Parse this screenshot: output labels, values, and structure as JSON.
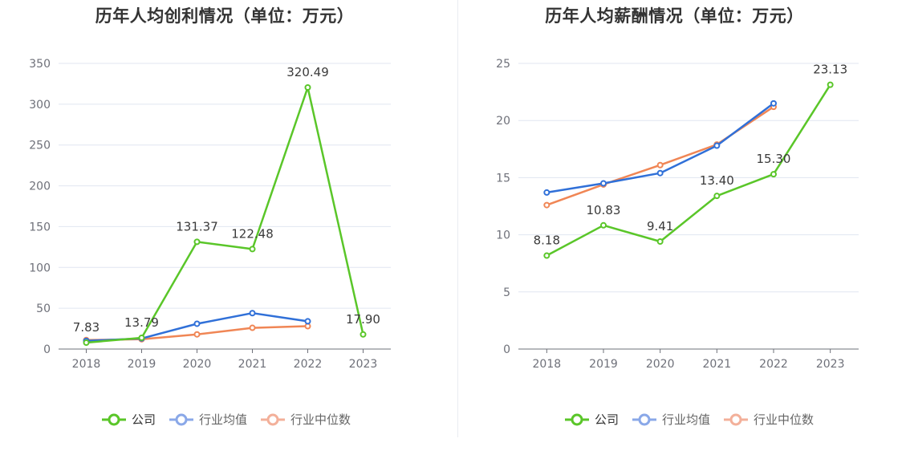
{
  "charts": [
    {
      "title": "历年人均创利情况（单位：万元）",
      "legend": [
        {
          "label": "公司",
          "color": "#5ac629"
        },
        {
          "label": "行业均值",
          "color": "#8aa8e8"
        },
        {
          "label": "行业中位数",
          "color": "#f3b09a"
        }
      ]
    },
    {
      "title": "历年人均薪酬情况（单位：万元）",
      "legend": [
        {
          "label": "公司",
          "color": "#5ac629"
        },
        {
          "label": "行业均值",
          "color": "#8aa8e8"
        },
        {
          "label": "行业中位数",
          "color": "#f3b09a"
        }
      ]
    }
  ],
  "chart_data": [
    {
      "type": "line",
      "title": "历年人均创利情况（单位：万元）",
      "categories": [
        "2018",
        "2019",
        "2020",
        "2021",
        "2022",
        "2023"
      ],
      "ylim": [
        0,
        350
      ],
      "yticks": [
        "0",
        "50",
        "100",
        "150",
        "200",
        "250",
        "300",
        "350"
      ],
      "grid": true,
      "legend_position": "bottom",
      "series": [
        {
          "name": "公司",
          "color": "#5ac629",
          "values": [
            7.83,
            13.79,
            131.37,
            122.48,
            320.49,
            17.9
          ],
          "labels": [
            "7.83",
            "13.79",
            "131.37",
            "122.48",
            "320.49",
            "17.90"
          ]
        },
        {
          "name": "行业均值",
          "color": "#3070d8",
          "values": [
            10,
            13,
            31,
            44,
            34,
            null
          ]
        },
        {
          "name": "行业中位数",
          "color": "#f08655",
          "values": [
            11,
            12,
            18,
            26,
            28,
            null
          ]
        }
      ]
    },
    {
      "type": "line",
      "title": "历年人均薪酬情况（单位：万元）",
      "categories": [
        "2018",
        "2019",
        "2020",
        "2021",
        "2022",
        "2023"
      ],
      "ylim": [
        0,
        25
      ],
      "yticks": [
        "0",
        "5",
        "10",
        "15",
        "20",
        "25"
      ],
      "grid": true,
      "legend_position": "bottom",
      "series": [
        {
          "name": "公司",
          "color": "#5ac629",
          "values": [
            8.18,
            10.83,
            9.41,
            13.4,
            15.3,
            23.13
          ],
          "labels": [
            "8.18",
            "10.83",
            "9.41",
            "13.40",
            "15.30",
            "23.13"
          ]
        },
        {
          "name": "行业均值",
          "color": "#3070d8",
          "values": [
            13.7,
            14.5,
            15.4,
            17.8,
            21.5,
            null
          ]
        },
        {
          "name": "行业中位数",
          "color": "#f08655",
          "values": [
            12.6,
            14.4,
            16.1,
            17.9,
            21.2,
            null
          ]
        }
      ]
    }
  ]
}
